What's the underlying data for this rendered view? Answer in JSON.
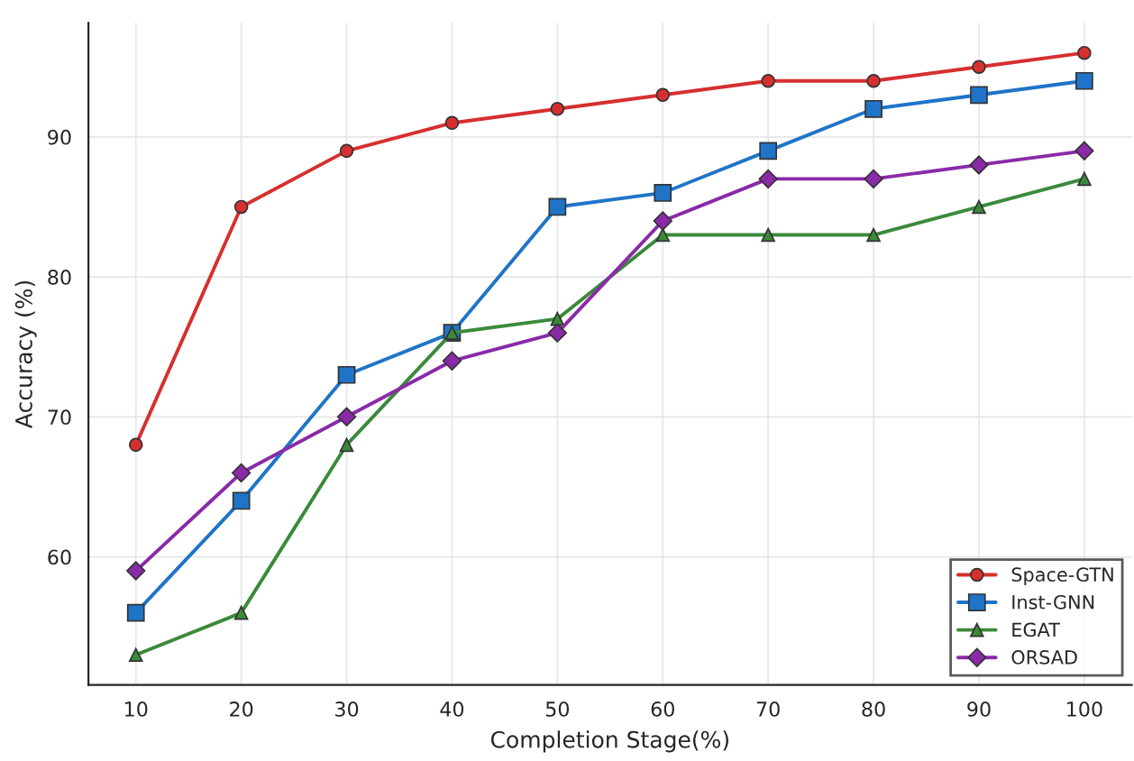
{
  "chart_data": {
    "type": "line",
    "xlabel": "Completion Stage(%)",
    "ylabel": "Accuracy (%)",
    "x": [
      10,
      20,
      30,
      40,
      50,
      60,
      70,
      80,
      90,
      100
    ],
    "series": [
      {
        "name": "Space-GTN",
        "color": "#d62f2f",
        "marker": "circle",
        "values": [
          68,
          85,
          89,
          91,
          92,
          93,
          94,
          94,
          95,
          96
        ]
      },
      {
        "name": "Inst-GNN",
        "color": "#1f74c8",
        "marker": "square",
        "values": [
          56,
          64,
          73,
          76,
          85,
          86,
          89,
          92,
          93,
          94
        ]
      },
      {
        "name": "EGAT",
        "color": "#3a8a3a",
        "marker": "triangle",
        "values": [
          53,
          56,
          68,
          76,
          77,
          83,
          83,
          83,
          85,
          87
        ]
      },
      {
        "name": "ORSAD",
        "color": "#8a2aa8",
        "marker": "diamond",
        "values": [
          59,
          66,
          70,
          74,
          76,
          84,
          87,
          87,
          88,
          89
        ]
      }
    ],
    "xlim": [
      5.5,
      104.5
    ],
    "ylim": [
      50.85,
      98.15
    ],
    "xticks": [
      10,
      20,
      30,
      40,
      50,
      60,
      70,
      80,
      90,
      100
    ],
    "yticks": [
      60,
      70,
      80,
      90
    ],
    "grid": true,
    "legend": "lower right",
    "line_style": "solid"
  }
}
